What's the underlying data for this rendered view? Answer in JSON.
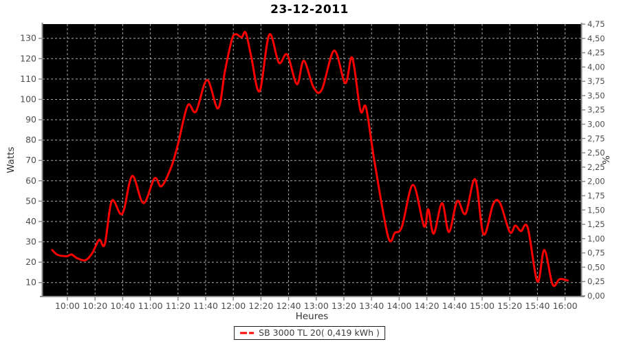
{
  "chart_data": {
    "type": "line",
    "title": "23-12-2011",
    "xlabel": "Heures",
    "ylabel_left": "Watts",
    "ylabel_right": "%",
    "grid": true,
    "plot_bg": "#000000",
    "grid_color": "#cccccc",
    "axis_color": "#8c8c8c",
    "tick_label_color": "#4d4d4d",
    "line_color": "#ff0000",
    "legend_position": "bottom-center",
    "x_ticks": [
      "10:00",
      "10:20",
      "10:40",
      "11:00",
      "11:20",
      "11:40",
      "12:00",
      "12:20",
      "12:40",
      "13:00",
      "13:20",
      "13:40",
      "14:00",
      "14:20",
      "14:40",
      "15:00",
      "15:20",
      "15:40",
      "16:00"
    ],
    "left_ticks": [
      10,
      20,
      30,
      40,
      50,
      60,
      70,
      80,
      90,
      100,
      110,
      120,
      130
    ],
    "right_ticks": [
      "0,00",
      "0,25",
      "0,50",
      "0,75",
      "1,00",
      "1,25",
      "1,50",
      "1,75",
      "2,00",
      "2,25",
      "2,50",
      "2,75",
      "3,00",
      "3,25",
      "3,50",
      "3,75",
      "4,00",
      "4,25",
      "4,50",
      "4,75"
    ],
    "ylim_left": [
      3.5,
      137
    ],
    "ylim_right": [
      0,
      4.75
    ],
    "x_range": [
      "09:42",
      "16:11"
    ],
    "series": [
      {
        "name": "SB 3000 TL 20( 0,419 kWh )",
        "color": "#ff0000",
        "points": [
          {
            "time": "09:49",
            "watts": 26.0
          },
          {
            "time": "09:52",
            "watts": 24.0
          },
          {
            "time": "09:55",
            "watts": 23.2
          },
          {
            "time": "10:00",
            "watts": 23.0
          },
          {
            "time": "10:03",
            "watts": 23.8
          },
          {
            "time": "10:07",
            "watts": 22.0
          },
          {
            "time": "10:13",
            "watts": 21.0
          },
          {
            "time": "10:18",
            "watts": 24.5
          },
          {
            "time": "10:23",
            "watts": 31.0
          },
          {
            "time": "10:27",
            "watts": 28.8
          },
          {
            "time": "10:32",
            "watts": 50.0
          },
          {
            "time": "10:38",
            "watts": 44.0
          },
          {
            "time": "10:41",
            "watts": 46.0
          },
          {
            "time": "10:47",
            "watts": 62.4
          },
          {
            "time": "10:55",
            "watts": 49.0
          },
          {
            "time": "11:03",
            "watts": 61.2
          },
          {
            "time": "11:08",
            "watts": 57.3
          },
          {
            "time": "11:15",
            "watts": 66.5
          },
          {
            "time": "11:20",
            "watts": 78.0
          },
          {
            "time": "11:27",
            "watts": 97.0
          },
          {
            "time": "11:33",
            "watts": 94.0
          },
          {
            "time": "11:41",
            "watts": 109.5
          },
          {
            "time": "11:49",
            "watts": 95.6
          },
          {
            "time": "11:54",
            "watts": 114.0
          },
          {
            "time": "11:59",
            "watts": 129.5
          },
          {
            "time": "12:02",
            "watts": 132.0
          },
          {
            "time": "12:06",
            "watts": 130.5
          },
          {
            "time": "12:09",
            "watts": 132.8
          },
          {
            "time": "12:13",
            "watts": 121.0
          },
          {
            "time": "12:19",
            "watts": 104.0
          },
          {
            "time": "12:26",
            "watts": 131.8
          },
          {
            "time": "12:33",
            "watts": 118.0
          },
          {
            "time": "12:39",
            "watts": 122.0
          },
          {
            "time": "12:46",
            "watts": 107.5
          },
          {
            "time": "12:51",
            "watts": 119.0
          },
          {
            "time": "12:58",
            "watts": 106.0
          },
          {
            "time": "13:04",
            "watts": 104.7
          },
          {
            "time": "13:13",
            "watts": 124.0
          },
          {
            "time": "13:21",
            "watts": 108.0
          },
          {
            "time": "13:26",
            "watts": 120.5
          },
          {
            "time": "13:32",
            "watts": 94.5
          },
          {
            "time": "13:36",
            "watts": 96.0
          },
          {
            "time": "13:42",
            "watts": 70.0
          },
          {
            "time": "13:52",
            "watts": 32.5
          },
          {
            "time": "13:57",
            "watts": 34.5
          },
          {
            "time": "14:02",
            "watts": 37.5
          },
          {
            "time": "14:10",
            "watts": 58.0
          },
          {
            "time": "14:18",
            "watts": 37.6
          },
          {
            "time": "14:21",
            "watts": 46.0
          },
          {
            "time": "14:25",
            "watts": 34.0
          },
          {
            "time": "14:31",
            "watts": 49.0
          },
          {
            "time": "14:36",
            "watts": 34.8
          },
          {
            "time": "14:42",
            "watts": 50.0
          },
          {
            "time": "14:48",
            "watts": 43.8
          },
          {
            "time": "14:55",
            "watts": 60.7
          },
          {
            "time": "15:01",
            "watts": 33.7
          },
          {
            "time": "15:08",
            "watts": 48.6
          },
          {
            "time": "15:13",
            "watts": 49.0
          },
          {
            "time": "15:20",
            "watts": 34.8
          },
          {
            "time": "15:24",
            "watts": 38.0
          },
          {
            "time": "15:28",
            "watts": 35.3
          },
          {
            "time": "15:33",
            "watts": 37.0
          },
          {
            "time": "15:40",
            "watts": 10.5
          },
          {
            "time": "15:45",
            "watts": 26.0
          },
          {
            "time": "15:51",
            "watts": 9.0
          },
          {
            "time": "15:56",
            "watts": 11.7
          },
          {
            "time": "16:02",
            "watts": 11.0
          }
        ]
      }
    ]
  },
  "legend": {
    "label": "SB 3000 TL 20( 0,419 kWh )",
    "marker_color": "#ff0000"
  }
}
